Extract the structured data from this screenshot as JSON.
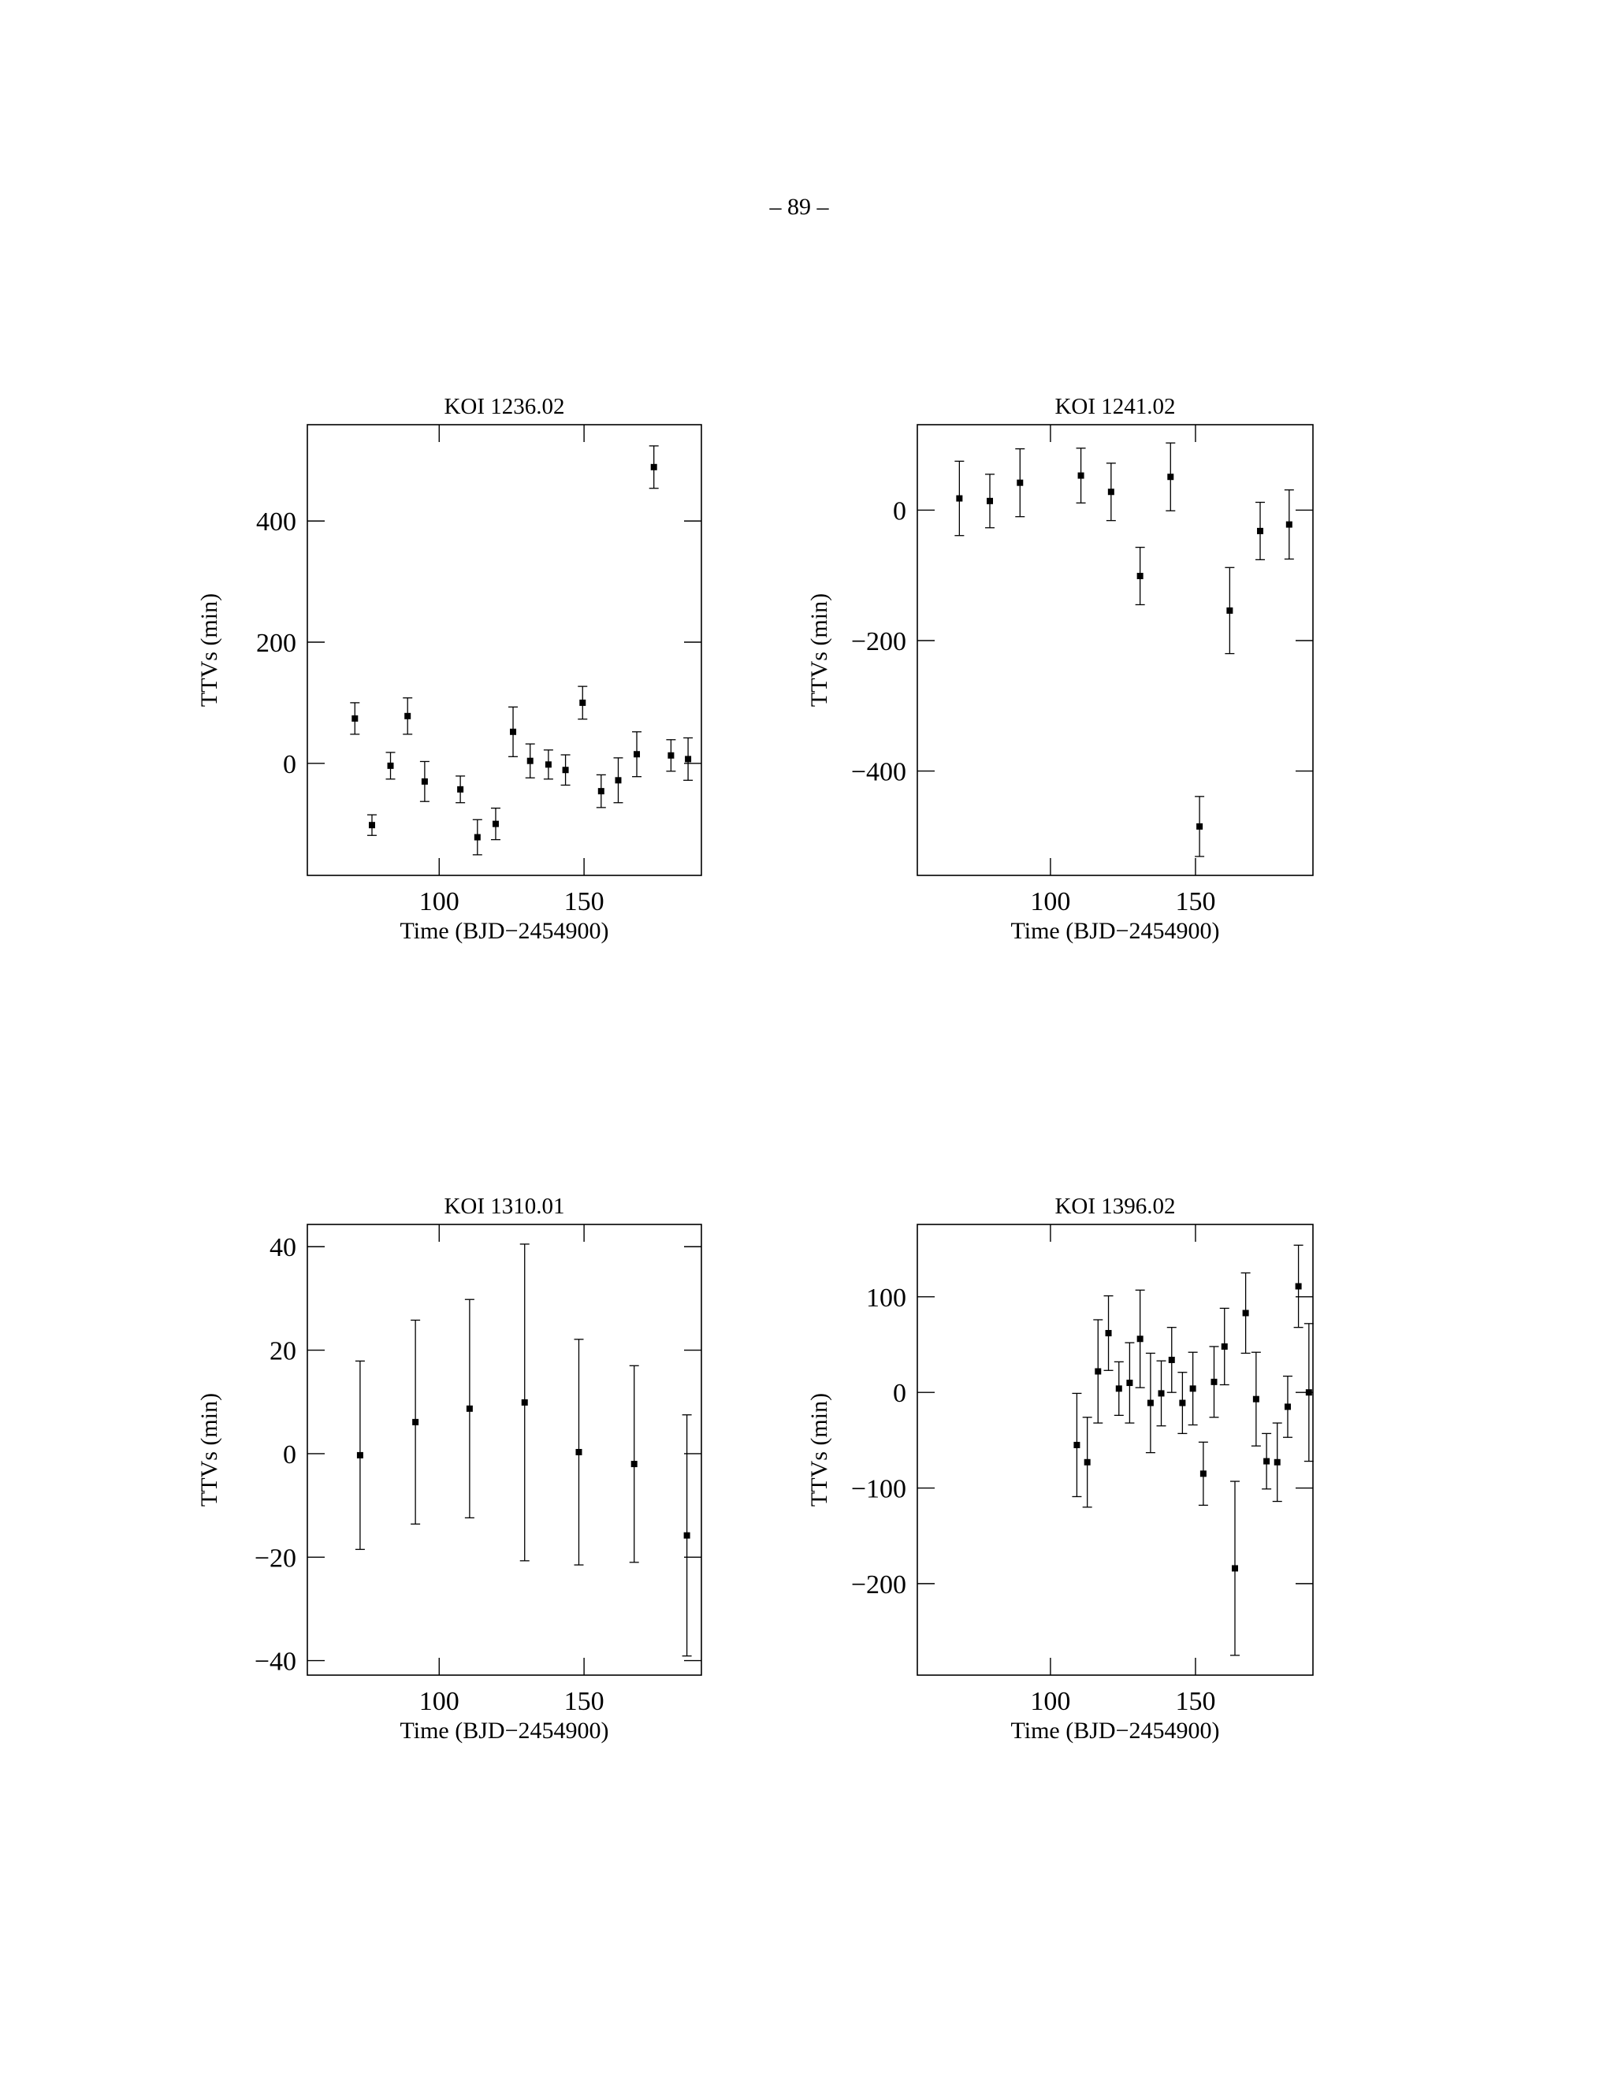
{
  "page_number": "– 89 –",
  "chart_data": [
    {
      "type": "scatter",
      "title": "KOI 1236.02",
      "x_label": "Time (BJD−2454900)",
      "y_label": "TTVs (min)",
      "color": "#000000",
      "xlim": [
        54.5,
        190.5
      ],
      "ylim": [
        -185,
        559
      ],
      "xticks": [
        100,
        150
      ],
      "yticks": [
        0,
        200,
        400
      ],
      "series": [
        {
          "x": [
            70.9,
            76.8,
            83.2,
            89.1,
            95,
            107.3,
            113.2,
            119.5,
            125.5,
            131.4,
            137.7,
            143.6,
            149.5,
            155.9,
            161.8,
            168.2,
            174.1,
            180,
            185.9
          ],
          "values": [
            74,
            -102,
            -4,
            78,
            -30,
            -43,
            -122,
            -100,
            52,
            4,
            -2,
            -11,
            100,
            -46,
            -28,
            15,
            489,
            13,
            7
          ],
          "errors": [
            26,
            17,
            22,
            30,
            33,
            22,
            29,
            26,
            41,
            28,
            24,
            25,
            27,
            27,
            37,
            37,
            35,
            26,
            35
          ]
        }
      ]
    },
    {
      "type": "scatter",
      "title": "KOI 1241.02",
      "x_label": "Time (BJD−2454900)",
      "y_label": "TTVs (min)",
      "color": "#000000",
      "xlim": [
        54.1,
        190.5
      ],
      "ylim": [
        -560,
        131
      ],
      "xticks": [
        100,
        150
      ],
      "yticks": [
        {
          "value": -400,
          "label": "−400"
        },
        {
          "value": -200,
          "label": "−200"
        },
        0
      ],
      "series": [
        {
          "x": [
            68.6,
            79.1,
            89.5,
            110.5,
            120.9,
            130.9,
            141.4,
            151.4,
            161.8,
            172.3,
            182.3
          ],
          "values": [
            18,
            14,
            42,
            53,
            28,
            -101,
            51,
            -485,
            -154,
            -32,
            -22
          ],
          "errors": [
            57,
            41,
            52,
            42,
            44,
            44,
            52,
            46,
            66,
            44,
            53
          ]
        }
      ]
    },
    {
      "type": "scatter",
      "title": "KOI 1310.01",
      "x_label": "Time (BJD−2454900)",
      "y_label": "TTVs (min)",
      "color": "#000000",
      "xlim": [
        54.5,
        190.5
      ],
      "ylim": [
        -42.8,
        44.3
      ],
      "xticks": [
        100,
        150
      ],
      "yticks": [
        {
          "value": -40,
          "label": "−40"
        },
        {
          "value": -20,
          "label": "−20"
        },
        0,
        20,
        40
      ],
      "series": [
        {
          "x": [
            72.7,
            91.8,
            110.5,
            129.5,
            148.2,
            167.3,
            185.5
          ],
          "values": [
            -0.3,
            6.1,
            8.7,
            9.9,
            0.3,
            -2,
            -15.8
          ],
          "errors": [
            18.2,
            19.7,
            21.1,
            30.6,
            21.8,
            19,
            23.3
          ]
        }
      ]
    },
    {
      "type": "scatter",
      "title": "KOI 1396.02",
      "x_label": "Time (BJD−2454900)",
      "y_label": "TTVs (min)",
      "color": "#000000",
      "xlim": [
        54.1,
        190.5
      ],
      "ylim": [
        -295.7,
        175.7
      ],
      "xticks": [
        100,
        150
      ],
      "yticks": [
        {
          "value": -200,
          "label": "−200"
        },
        {
          "value": -100,
          "label": "−100"
        },
        0,
        100
      ],
      "series": [
        {
          "x": [
            109.1,
            112.7,
            116.4,
            120,
            123.6,
            127.3,
            130.9,
            134.5,
            138.2,
            141.8,
            145.5,
            149.1,
            152.7,
            156.4,
            160,
            163.6,
            167.3,
            170.9,
            174.5,
            178.2,
            181.8,
            185.5,
            189.1
          ],
          "values": [
            -55,
            -73,
            22,
            62,
            4,
            10,
            56,
            -11,
            -1,
            34,
            -11,
            4,
            -85,
            11,
            48,
            -184,
            83,
            -7,
            -72,
            -73,
            -15,
            111,
            0
          ],
          "errors": [
            54,
            47,
            54,
            39,
            28,
            42,
            51,
            52,
            34,
            34,
            32,
            38,
            33,
            37,
            40,
            91,
            42,
            49,
            29,
            41,
            32,
            43,
            72
          ]
        }
      ]
    }
  ]
}
